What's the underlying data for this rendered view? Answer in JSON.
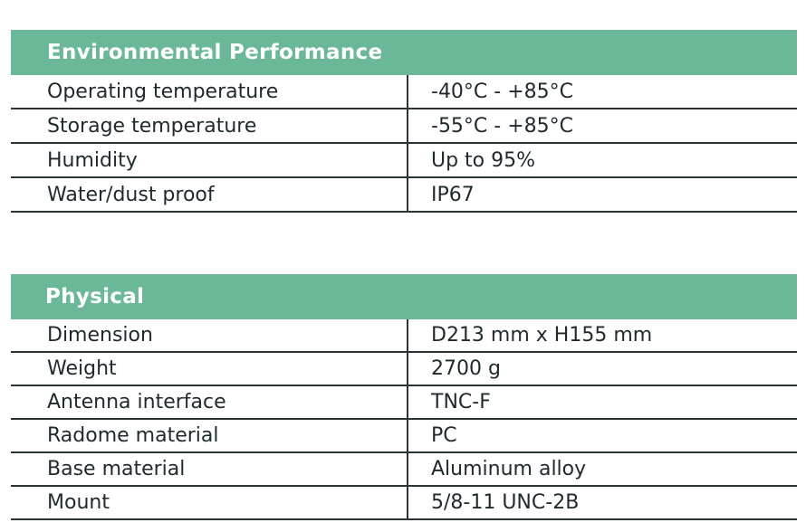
{
  "environmental": {
    "title": "Environmental Performance",
    "rows": [
      {
        "label": "Operating temperature",
        "value": "-40°C - +85°C"
      },
      {
        "label": "Storage temperature",
        "value": "-55°C - +85°C"
      },
      {
        "label": "Humidity",
        "value": "Up to 95%"
      },
      {
        "label": "Water/dust proof",
        "value": "IP67"
      }
    ]
  },
  "physical": {
    "title": "Physical",
    "rows": [
      {
        "label": "Dimension",
        "value": "D213 mm x H155 mm"
      },
      {
        "label": "Weight",
        "value": "2700 g"
      },
      {
        "label": "Antenna interface",
        "value": "TNC-F"
      },
      {
        "label": "Radome material",
        "value": "PC"
      },
      {
        "label": "Base material",
        "value": "Aluminum alloy"
      },
      {
        "label": "Mount",
        "value": "5/8-11 UNC-2B"
      }
    ]
  }
}
